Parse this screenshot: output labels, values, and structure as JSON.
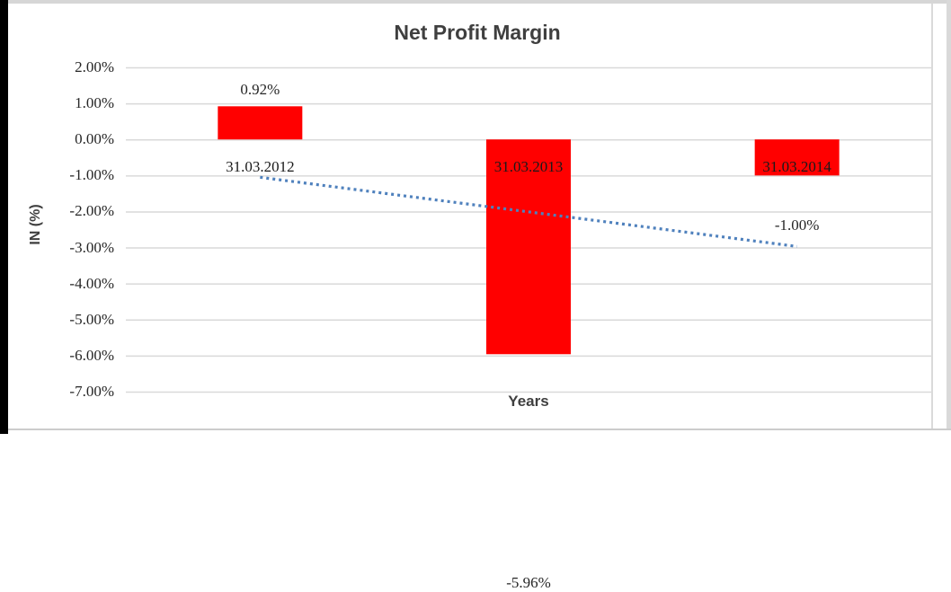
{
  "frame": {
    "background": "#ffffff",
    "left_edge_color": "#000000",
    "chart_border_color": "#d6d6d6"
  },
  "chart_data": {
    "type": "bar",
    "title": "Net Profit Margin",
    "xlabel": "Years",
    "ylabel": "IN (%)",
    "categories": [
      "31.03.2012",
      "31.03.2013",
      "31.03.2014"
    ],
    "values": [
      0.92,
      -5.96,
      -1.0
    ],
    "data_labels": [
      "0.92%",
      "-5.96%",
      "-1.00%"
    ],
    "ylim": [
      -7,
      2
    ],
    "ytick_step": 1,
    "ytick_labels": [
      "2.00%",
      "1.00%",
      "0.00%",
      "-1.00%",
      "-2.00%",
      "-3.00%",
      "-4.00%",
      "-5.00%",
      "-6.00%",
      "-7.00%"
    ],
    "grid": true,
    "legend": false,
    "bar_color": "#ff0000",
    "gridline_color": "#d9d9d9",
    "trendline": {
      "shape": "linear",
      "line_style": "dotted",
      "color": "#4f81bd",
      "fitted_values": [
        -1.05,
        -2.01,
        -2.97
      ]
    }
  }
}
